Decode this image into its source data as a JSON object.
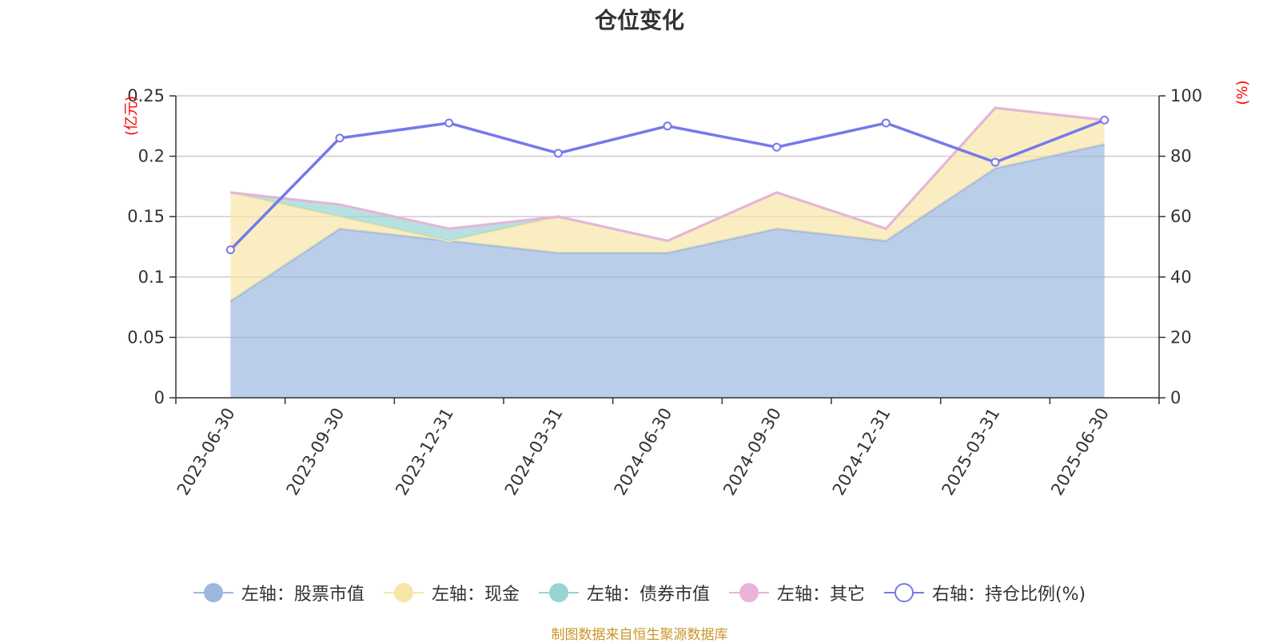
{
  "title": "仓位变化",
  "footer": "制图数据来自恒生聚源数据库",
  "chart_data": {
    "type": "area",
    "title": "仓位变化",
    "categories": [
      "2023-06-30",
      "2023-09-30",
      "2023-12-31",
      "2024-03-31",
      "2024-06-30",
      "2024-09-30",
      "2024-12-31",
      "2025-03-31",
      "2025-06-30"
    ],
    "left_axis": {
      "label": "(亿元)",
      "min": 0,
      "max": 0.25,
      "ticks": [
        "0",
        "0.05",
        "0.1",
        "0.15",
        "0.2",
        "0.25"
      ]
    },
    "right_axis": {
      "label": "(%)",
      "min": 0,
      "max": 100,
      "ticks": [
        "0",
        "20",
        "40",
        "60",
        "80",
        "100"
      ]
    },
    "grid": true,
    "legend_position": "bottom",
    "stacked": true,
    "series": [
      {
        "name": "左轴：股票市值",
        "axis": "left",
        "kind": "area",
        "color": "#9cb8e0",
        "values": [
          0.08,
          0.14,
          0.13,
          0.12,
          0.12,
          0.14,
          0.13,
          0.19,
          0.21
        ]
      },
      {
        "name": "左轴：现金",
        "axis": "left",
        "kind": "area",
        "color": "#f8e6a8",
        "values": [
          0.09,
          0.01,
          0.0,
          0.03,
          0.01,
          0.03,
          0.01,
          0.05,
          0.02
        ]
      },
      {
        "name": "左轴：债券市值",
        "axis": "left",
        "kind": "area",
        "color": "#98d4d4",
        "values": [
          0.0,
          0.01,
          0.01,
          0.0,
          0.0,
          0.0,
          0.0,
          0.0,
          0.0
        ]
      },
      {
        "name": "左轴：其它",
        "axis": "left",
        "kind": "area",
        "color": "#e8b4d8",
        "values": [
          0.0,
          0.0,
          0.0,
          0.0,
          0.0,
          0.0,
          0.0,
          0.0,
          0.0
        ]
      },
      {
        "name": "右轴：持仓比例(%)",
        "axis": "right",
        "kind": "line",
        "color": "#7679ea",
        "values": [
          49,
          86,
          91,
          81,
          90,
          83,
          91,
          78,
          92
        ]
      }
    ]
  }
}
